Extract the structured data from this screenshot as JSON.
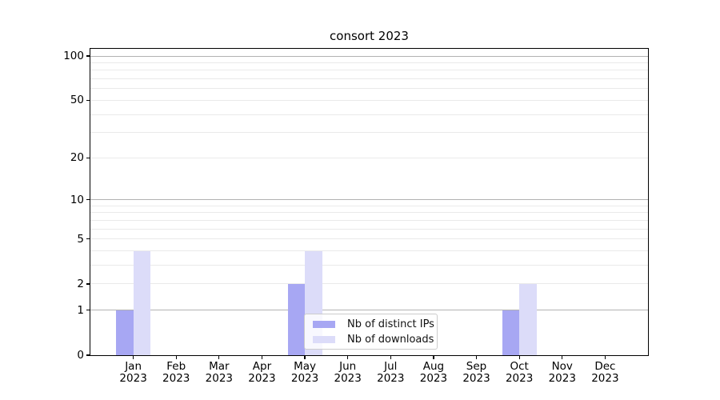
{
  "chart_data": {
    "type": "bar",
    "title": "consort 2023",
    "categories": [
      "Jan",
      "Feb",
      "Mar",
      "Apr",
      "May",
      "Jun",
      "Jul",
      "Aug",
      "Sep",
      "Oct",
      "Nov",
      "Dec"
    ],
    "year_label": "2023",
    "series": [
      {
        "name": "Nb of distinct IPs",
        "color": "#a7a7f3",
        "values": [
          1,
          0,
          0,
          0,
          2,
          0,
          0,
          0,
          0,
          1,
          0,
          0
        ]
      },
      {
        "name": "Nb of downloads",
        "color": "#dcdcf9",
        "values": [
          4,
          0,
          0,
          0,
          4,
          0,
          0,
          0,
          0,
          2,
          0,
          0
        ]
      }
    ],
    "yscale": "log1p",
    "ylim": [
      0,
      112
    ],
    "ytick_labels": [
      "0",
      "1",
      "2",
      "5",
      "10",
      "20",
      "50",
      "100"
    ],
    "yticks": [
      0,
      1,
      2,
      5,
      10,
      20,
      50,
      100
    ],
    "major_gridlines": [
      1,
      10,
      100
    ],
    "minor_gridlines": [
      2,
      3,
      4,
      5,
      6,
      7,
      8,
      9,
      20,
      30,
      40,
      50,
      60,
      70,
      80,
      90
    ],
    "legend_position": "lower center",
    "grid_color_major": "#b2b2b2",
    "grid_color_minor": "#eaeaea"
  }
}
